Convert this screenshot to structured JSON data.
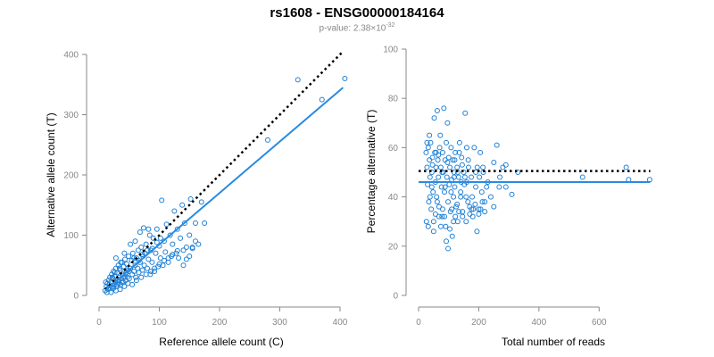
{
  "title": "rs1608 - ENSG00000184164",
  "subtitle_prefix": "p-value: 2.38×10",
  "subtitle_exp": "-32",
  "colors": {
    "points": "#1f7fd4",
    "fit": "#2a8ae0",
    "reference": "#000000",
    "axis": "#888888"
  },
  "chart_data": [
    {
      "type": "scatter",
      "xlabel": "Reference allele count (C)",
      "ylabel": "Alternative allele count (T)",
      "xlim": [
        0,
        400
      ],
      "ylim": [
        0,
        400
      ],
      "xticks": [
        0,
        100,
        200,
        300,
        400
      ],
      "yticks": [
        0,
        100,
        200,
        300,
        400
      ],
      "grid": false,
      "points": [
        [
          12,
          15
        ],
        [
          14,
          20
        ],
        [
          15,
          10
        ],
        [
          16,
          25
        ],
        [
          17,
          18
        ],
        [
          18,
          30
        ],
        [
          19,
          12
        ],
        [
          20,
          22
        ],
        [
          21,
          35
        ],
        [
          22,
          14
        ],
        [
          23,
          28
        ],
        [
          24,
          40
        ],
        [
          25,
          18
        ],
        [
          26,
          32
        ],
        [
          27,
          22
        ],
        [
          28,
          45
        ],
        [
          29,
          15
        ],
        [
          30,
          38
        ],
        [
          31,
          25
        ],
        [
          32,
          50
        ],
        [
          33,
          20
        ],
        [
          34,
          30
        ],
        [
          35,
          42
        ],
        [
          36,
          18
        ],
        [
          37,
          28
        ],
        [
          38,
          55
        ],
        [
          39,
          35
        ],
        [
          40,
          22
        ],
        [
          41,
          48
        ],
        [
          42,
          30
        ],
        [
          43,
          60
        ],
        [
          44,
          25
        ],
        [
          45,
          38
        ],
        [
          46,
          52
        ],
        [
          47,
          30
        ],
        [
          48,
          42
        ],
        [
          49,
          65
        ],
        [
          50,
          28
        ],
        [
          52,
          45
        ],
        [
          54,
          58
        ],
        [
          55,
          35
        ],
        [
          56,
          70
        ],
        [
          58,
          40
        ],
        [
          60,
          50
        ],
        [
          61,
          30
        ],
        [
          62,
          62
        ],
        [
          64,
          45
        ],
        [
          65,
          75
        ],
        [
          66,
          38
        ],
        [
          68,
          55
        ],
        [
          70,
          80
        ],
        [
          72,
          42
        ],
        [
          73,
          65
        ],
        [
          74,
          112
        ],
        [
          75,
          50
        ],
        [
          76,
          70
        ],
        [
          78,
          85
        ],
        [
          80,
          45
        ],
        [
          82,
          60
        ],
        [
          84,
          100
        ],
        [
          85,
          35
        ],
        [
          86,
          75
        ],
        [
          88,
          55
        ],
        [
          90,
          95
        ],
        [
          92,
          40
        ],
        [
          94,
          70
        ],
        [
          96,
          110
        ],
        [
          98,
          48
        ],
        [
          100,
          82
        ],
        [
          102,
          62
        ],
        [
          104,
          158
        ],
        [
          106,
          50
        ],
        [
          108,
          90
        ],
        [
          110,
          72
        ],
        [
          112,
          118
        ],
        [
          115,
          55
        ],
        [
          118,
          100
        ],
        [
          120,
          65
        ],
        [
          122,
          85
        ],
        [
          125,
          140
        ],
        [
          128,
          70
        ],
        [
          130,
          110
        ],
        [
          132,
          62
        ],
        [
          135,
          95
        ],
        [
          138,
          150
        ],
        [
          140,
          75
        ],
        [
          142,
          120
        ],
        [
          145,
          80
        ],
        [
          150,
          100
        ],
        [
          152,
          160
        ],
        [
          155,
          78
        ],
        [
          160,
          120
        ],
        [
          165,
          85
        ],
        [
          170,
          155
        ],
        [
          175,
          120
        ],
        [
          10,
          8
        ],
        [
          11,
          22
        ],
        [
          13,
          5
        ],
        [
          16,
          12
        ],
        [
          20,
          5
        ],
        [
          24,
          12
        ],
        [
          28,
          8
        ],
        [
          35,
          10
        ],
        [
          42,
          15
        ],
        [
          48,
          20
        ],
        [
          55,
          18
        ],
        [
          62,
          25
        ],
        [
          70,
          30
        ],
        [
          78,
          35
        ],
        [
          86,
          40
        ],
        [
          92,
          45
        ],
        [
          100,
          52
        ],
        [
          108,
          58
        ],
        [
          115,
          62
        ],
        [
          122,
          68
        ],
        [
          130,
          74
        ],
        [
          140,
          50
        ],
        [
          145,
          60
        ],
        [
          150,
          65
        ],
        [
          155,
          80
        ],
        [
          160,
          90
        ],
        [
          280,
          258
        ],
        [
          330,
          358
        ],
        [
          370,
          325
        ],
        [
          408,
          360
        ],
        [
          22,
          30
        ],
        [
          26,
          38
        ],
        [
          30,
          18
        ],
        [
          34,
          45
        ],
        [
          38,
          22
        ],
        [
          44,
          35
        ],
        [
          50,
          40
        ],
        [
          58,
          62
        ],
        [
          66,
          58
        ],
        [
          72,
          68
        ],
        [
          80,
          75
        ],
        [
          88,
          78
        ],
        [
          96,
          88
        ],
        [
          102,
          95
        ],
        [
          28,
          62
        ],
        [
          36,
          55
        ],
        [
          42,
          70
        ],
        [
          52,
          85
        ],
        [
          60,
          90
        ],
        [
          68,
          105
        ],
        [
          82,
          110
        ]
      ],
      "fit_line": [
        [
          10,
          8
        ],
        [
          405,
          345
        ]
      ],
      "reference_line": [
        [
          10,
          10
        ],
        [
          405,
          405
        ]
      ]
    },
    {
      "type": "scatter",
      "xlabel": "Total number of reads",
      "ylabel": "Percentage alternative (T)",
      "xlim": [
        0,
        700
      ],
      "ylim": [
        0,
        100
      ],
      "xticks": [
        0,
        200,
        400,
        600
      ],
      "yticks": [
        0,
        20,
        40,
        60,
        80,
        100
      ],
      "grid": false,
      "points": [
        [
          25,
          58
        ],
        [
          28,
          52
        ],
        [
          30,
          45
        ],
        [
          32,
          60
        ],
        [
          34,
          38
        ],
        [
          36,
          55
        ],
        [
          38,
          48
        ],
        [
          40,
          62
        ],
        [
          42,
          35
        ],
        [
          44,
          50
        ],
        [
          46,
          56
        ],
        [
          48,
          42
        ],
        [
          50,
          30
        ],
        [
          52,
          72
        ],
        [
          54,
          58
        ],
        [
          56,
          46
        ],
        [
          58,
          52
        ],
        [
          60,
          40
        ],
        [
          62,
          75
        ],
        [
          64,
          55
        ],
        [
          66,
          48
        ],
        [
          68,
          36
        ],
        [
          70,
          60
        ],
        [
          72,
          65
        ],
        [
          74,
          52
        ],
        [
          76,
          44
        ],
        [
          78,
          32
        ],
        [
          80,
          58
        ],
        [
          82,
          50
        ],
        [
          84,
          76
        ],
        [
          86,
          42
        ],
        [
          88,
          55
        ],
        [
          90,
          28
        ],
        [
          92,
          62
        ],
        [
          94,
          48
        ],
        [
          96,
          70
        ],
        [
          98,
          38
        ],
        [
          100,
          56
        ],
        [
          102,
          45
        ],
        [
          104,
          52
        ],
        [
          106,
          34
        ],
        [
          108,
          60
        ],
        [
          110,
          47
        ],
        [
          112,
          24
        ],
        [
          114,
          55
        ],
        [
          116,
          40
        ],
        [
          118,
          50
        ],
        [
          120,
          44
        ],
        [
          122,
          58
        ],
        [
          125,
          36
        ],
        [
          128,
          52
        ],
        [
          130,
          30
        ],
        [
          133,
          48
        ],
        [
          136,
          62
        ],
        [
          140,
          42
        ],
        [
          143,
          56
        ],
        [
          146,
          34
        ],
        [
          150,
          50
        ],
        [
          155,
          74
        ],
        [
          158,
          40
        ],
        [
          160,
          46
        ],
        [
          165,
          55
        ],
        [
          170,
          36
        ],
        [
          175,
          48
        ],
        [
          180,
          32
        ],
        [
          185,
          60
        ],
        [
          190,
          44
        ],
        [
          195,
          52
        ],
        [
          200,
          35
        ],
        [
          205,
          58
        ],
        [
          210,
          42
        ],
        [
          215,
          50
        ],
        [
          220,
          34
        ],
        [
          230,
          46
        ],
        [
          240,
          40
        ],
        [
          250,
          54
        ],
        [
          260,
          61
        ],
        [
          270,
          48
        ],
        [
          280,
          52
        ],
        [
          290,
          44
        ],
        [
          26,
          30
        ],
        [
          32,
          28
        ],
        [
          38,
          40
        ],
        [
          44,
          44
        ],
        [
          50,
          26
        ],
        [
          56,
          33
        ],
        [
          62,
          38
        ],
        [
          68,
          32
        ],
        [
          74,
          28
        ],
        [
          80,
          35
        ],
        [
          86,
          32
        ],
        [
          92,
          22
        ],
        [
          98,
          19
        ],
        [
          104,
          27
        ],
        [
          110,
          35
        ],
        [
          116,
          30
        ],
        [
          122,
          32
        ],
        [
          128,
          37
        ],
        [
          134,
          34
        ],
        [
          140,
          40
        ],
        [
          146,
          32
        ],
        [
          152,
          45
        ],
        [
          158,
          30
        ],
        [
          164,
          38
        ],
        [
          170,
          33
        ],
        [
          176,
          35
        ],
        [
          182,
          35
        ],
        [
          188,
          37
        ],
        [
          194,
          26
        ],
        [
          200,
          33
        ],
        [
          206,
          35
        ],
        [
          212,
          38
        ],
        [
          220,
          38
        ],
        [
          28,
          62
        ],
        [
          36,
          65
        ],
        [
          46,
          53
        ],
        [
          58,
          58
        ],
        [
          66,
          57
        ],
        [
          78,
          50
        ],
        [
          88,
          44
        ],
        [
          96,
          54
        ],
        [
          108,
          42
        ],
        [
          118,
          48
        ],
        [
          130,
          50
        ],
        [
          142,
          46
        ],
        [
          154,
          48
        ],
        [
          166,
          52
        ],
        [
          178,
          40
        ],
        [
          190,
          50
        ],
        [
          202,
          48
        ],
        [
          214,
          52
        ],
        [
          226,
          44
        ],
        [
          250,
          36
        ],
        [
          268,
          44
        ],
        [
          290,
          53
        ],
        [
          310,
          41
        ],
        [
          330,
          50
        ],
        [
          545,
          48
        ],
        [
          690,
          52
        ],
        [
          698,
          47
        ],
        [
          768,
          47
        ],
        [
          120,
          55
        ],
        [
          135,
          58
        ],
        [
          145,
          53
        ],
        [
          160,
          60
        ]
      ],
      "fit_line": [
        [
          0,
          46
        ],
        [
          770,
          46
        ]
      ],
      "reference_line": [
        [
          0,
          50.5
        ],
        [
          770,
          50.5
        ]
      ]
    }
  ]
}
